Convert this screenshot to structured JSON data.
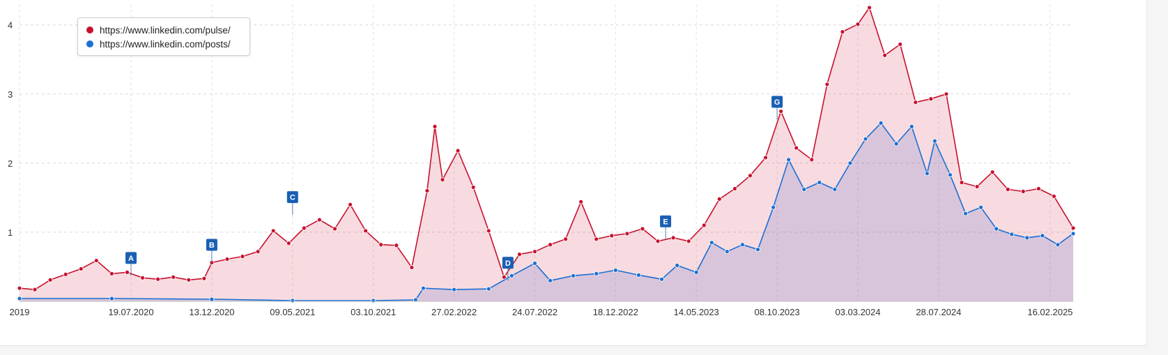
{
  "chart_data": {
    "type": "area",
    "title": "",
    "xlabel": "",
    "ylabel": "",
    "ylim": [
      0,
      4.3
    ],
    "y_ticks": [
      "1",
      "2",
      "3",
      "4"
    ],
    "x_range": [
      "2019-12-29",
      "2025-03-30"
    ],
    "x_tick_labels": [
      {
        "date": "2019-12-29",
        "label": "2019"
      },
      {
        "date": "2020-07-19",
        "label": "19.07.2020"
      },
      {
        "date": "2020-12-13",
        "label": "13.12.2020"
      },
      {
        "date": "2021-05-09",
        "label": "09.05.2021"
      },
      {
        "date": "2021-10-03",
        "label": "03.10.2021"
      },
      {
        "date": "2022-02-27",
        "label": "27.02.2022"
      },
      {
        "date": "2022-07-24",
        "label": "24.07.2022"
      },
      {
        "date": "2022-12-18",
        "label": "18.12.2022"
      },
      {
        "date": "2023-05-14",
        "label": "14.05.2023"
      },
      {
        "date": "2023-10-08",
        "label": "08.10.2023"
      },
      {
        "date": "2024-03-03",
        "label": "03.03.2024"
      },
      {
        "date": "2024-07-28",
        "label": "28.07.2024"
      },
      {
        "date": "2025-02-16",
        "label": "16.02.2025"
      }
    ],
    "grid": true,
    "legend_position": "top-left",
    "series": [
      {
        "name": "https://www.linkedin.com/pulse/",
        "color": "#c8102e",
        "fill": "rgba(200,16,46,0.15)",
        "points": [
          [
            "2019-12-29",
            0.19
          ],
          [
            "2020-01-26",
            0.17
          ],
          [
            "2020-02-23",
            0.31
          ],
          [
            "2020-03-22",
            0.39
          ],
          [
            "2020-04-19",
            0.47
          ],
          [
            "2020-05-17",
            0.59
          ],
          [
            "2020-06-14",
            0.4
          ],
          [
            "2020-07-12",
            0.42
          ],
          [
            "2020-08-09",
            0.34
          ],
          [
            "2020-09-06",
            0.32
          ],
          [
            "2020-10-04",
            0.35
          ],
          [
            "2020-11-01",
            0.31
          ],
          [
            "2020-11-29",
            0.33
          ],
          [
            "2020-12-13",
            0.56
          ],
          [
            "2021-01-10",
            0.61
          ],
          [
            "2021-02-07",
            0.65
          ],
          [
            "2021-03-07",
            0.72
          ],
          [
            "2021-04-04",
            1.02
          ],
          [
            "2021-05-02",
            0.84
          ],
          [
            "2021-05-30",
            1.06
          ],
          [
            "2021-06-27",
            1.18
          ],
          [
            "2021-07-25",
            1.05
          ],
          [
            "2021-08-22",
            1.4
          ],
          [
            "2021-09-19",
            1.02
          ],
          [
            "2021-10-17",
            0.82
          ],
          [
            "2021-11-14",
            0.81
          ],
          [
            "2021-12-12",
            0.49
          ],
          [
            "2022-01-09",
            1.6
          ],
          [
            "2022-01-23",
            2.53
          ],
          [
            "2022-02-06",
            1.76
          ],
          [
            "2022-03-06",
            2.18
          ],
          [
            "2022-04-03",
            1.65
          ],
          [
            "2022-05-01",
            1.02
          ],
          [
            "2022-05-29",
            0.35
          ],
          [
            "2022-06-26",
            0.68
          ],
          [
            "2022-07-24",
            0.72
          ],
          [
            "2022-08-21",
            0.82
          ],
          [
            "2022-09-18",
            0.9
          ],
          [
            "2022-10-16",
            1.44
          ],
          [
            "2022-11-13",
            0.9
          ],
          [
            "2022-12-11",
            0.95
          ],
          [
            "2023-01-08",
            0.98
          ],
          [
            "2023-02-05",
            1.05
          ],
          [
            "2023-03-05",
            0.87
          ],
          [
            "2023-04-02",
            0.92
          ],
          [
            "2023-04-30",
            0.87
          ],
          [
            "2023-05-28",
            1.1
          ],
          [
            "2023-06-25",
            1.48
          ],
          [
            "2023-07-23",
            1.63
          ],
          [
            "2023-08-20",
            1.82
          ],
          [
            "2023-09-17",
            2.08
          ],
          [
            "2023-10-15",
            2.75
          ],
          [
            "2023-11-12",
            2.22
          ],
          [
            "2023-12-10",
            2.05
          ],
          [
            "2024-01-07",
            3.14
          ],
          [
            "2024-02-04",
            3.9
          ],
          [
            "2024-03-03",
            4.01
          ],
          [
            "2024-03-24",
            4.25
          ],
          [
            "2024-04-21",
            3.56
          ],
          [
            "2024-05-19",
            3.72
          ],
          [
            "2024-06-16",
            2.88
          ],
          [
            "2024-07-14",
            2.93
          ],
          [
            "2024-08-11",
            3.0
          ],
          [
            "2024-09-08",
            1.72
          ],
          [
            "2024-10-06",
            1.66
          ],
          [
            "2024-11-03",
            1.87
          ],
          [
            "2024-12-01",
            1.62
          ],
          [
            "2024-12-29",
            1.59
          ],
          [
            "2025-01-26",
            1.63
          ],
          [
            "2025-02-23",
            1.52
          ],
          [
            "2025-03-30",
            1.06
          ]
        ]
      },
      {
        "name": "https://www.linkedin.com/posts/",
        "color": "#1a6fd4",
        "fill": "rgba(80,100,200,0.18)",
        "points": [
          [
            "2019-12-29",
            0.04
          ],
          [
            "2020-06-14",
            0.04
          ],
          [
            "2020-12-13",
            0.03
          ],
          [
            "2021-05-09",
            0.01
          ],
          [
            "2021-10-03",
            0.01
          ],
          [
            "2021-12-19",
            0.02
          ],
          [
            "2022-01-02",
            0.19
          ],
          [
            "2022-02-27",
            0.17
          ],
          [
            "2022-05-01",
            0.18
          ],
          [
            "2022-06-12",
            0.37
          ],
          [
            "2022-07-24",
            0.55
          ],
          [
            "2022-08-21",
            0.3
          ],
          [
            "2022-10-02",
            0.37
          ],
          [
            "2022-11-13",
            0.4
          ],
          [
            "2022-12-18",
            0.45
          ],
          [
            "2023-01-29",
            0.38
          ],
          [
            "2023-03-12",
            0.32
          ],
          [
            "2023-04-09",
            0.52
          ],
          [
            "2023-05-14",
            0.42
          ],
          [
            "2023-06-11",
            0.85
          ],
          [
            "2023-07-09",
            0.72
          ],
          [
            "2023-08-06",
            0.82
          ],
          [
            "2023-09-03",
            0.75
          ],
          [
            "2023-10-01",
            1.36
          ],
          [
            "2023-10-29",
            2.05
          ],
          [
            "2023-11-26",
            1.62
          ],
          [
            "2023-12-24",
            1.72
          ],
          [
            "2024-01-21",
            1.62
          ],
          [
            "2024-02-18",
            2.0
          ],
          [
            "2024-03-17",
            2.35
          ],
          [
            "2024-04-14",
            2.58
          ],
          [
            "2024-05-12",
            2.28
          ],
          [
            "2024-06-09",
            2.53
          ],
          [
            "2024-07-07",
            1.85
          ],
          [
            "2024-07-21",
            2.32
          ],
          [
            "2024-08-18",
            1.83
          ],
          [
            "2024-09-15",
            1.27
          ],
          [
            "2024-10-13",
            1.36
          ],
          [
            "2024-11-10",
            1.05
          ],
          [
            "2024-12-08",
            0.97
          ],
          [
            "2025-01-05",
            0.92
          ],
          [
            "2025-02-02",
            0.95
          ],
          [
            "2025-03-02",
            0.82
          ],
          [
            "2025-03-30",
            0.98
          ]
        ]
      }
    ],
    "annotations": [
      {
        "label": "A",
        "date": "2020-07-19",
        "y": 0.37
      },
      {
        "label": "B",
        "date": "2020-12-13",
        "y": 0.56
      },
      {
        "label": "C",
        "date": "2021-05-09",
        "y": 1.25
      },
      {
        "label": "D",
        "date": "2022-06-05",
        "y": 0.3
      },
      {
        "label": "E",
        "date": "2023-03-19",
        "y": 0.9
      },
      {
        "label": "G",
        "date": "2023-10-08",
        "y": 2.63
      }
    ]
  }
}
